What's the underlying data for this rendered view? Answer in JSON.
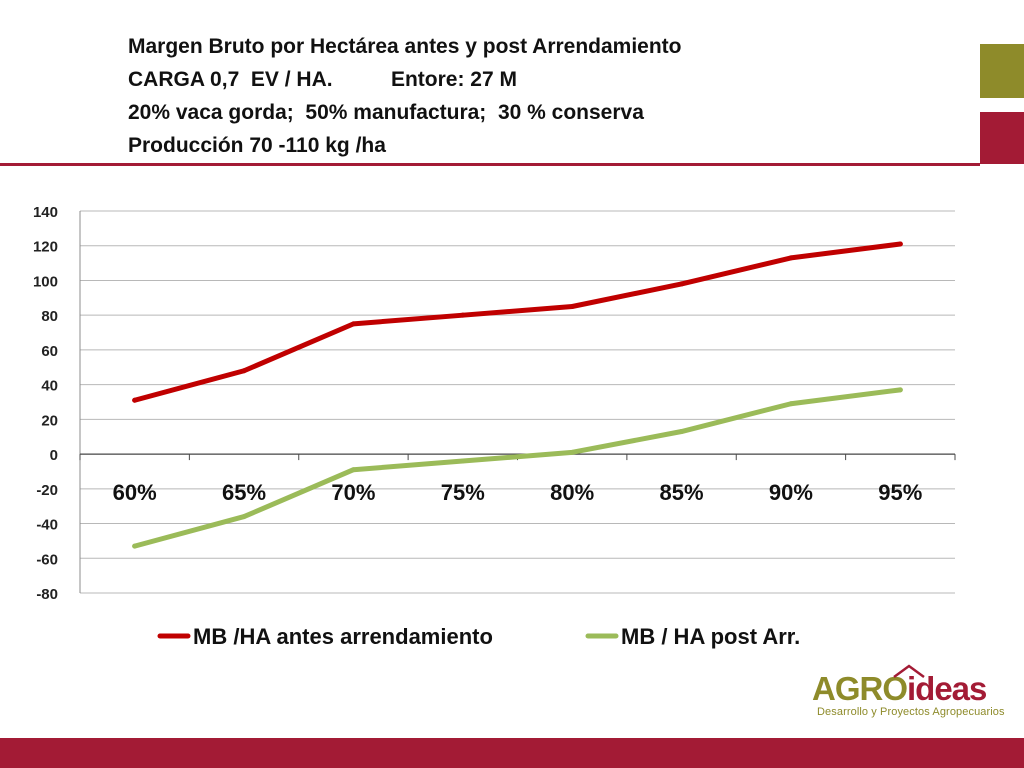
{
  "title_lines": [
    "Margen Bruto por Hectárea antes y post Arrendamiento",
    "CARGA 0,7  EV / HA.          Entore: 27 M",
    "20% vaca gorda;  50% manufactura;  30 % conserva",
    "Producción 70 -110 kg /ha"
  ],
  "colors": {
    "accent_red": "#a31b35",
    "accent_olive": "#8e8b2a",
    "series_red": "#c00000",
    "series_green": "#9bbb59"
  },
  "logo": {
    "main_agro": "AGRO",
    "main_ideas": "ideas",
    "subtitle": "Desarrollo y Proyectos Agropecuarios"
  },
  "chart_data": {
    "type": "line",
    "categories": [
      "60%",
      "65%",
      "70%",
      "75%",
      "80%",
      "85%",
      "90%",
      "95%"
    ],
    "series": [
      {
        "name": "MB /HA antes arrendamiento",
        "color": "#c00000",
        "values": [
          31,
          48,
          75,
          80,
          85,
          98,
          113,
          121
        ]
      },
      {
        "name": "MB / HA post Arr.",
        "color": "#9bbb59",
        "values": [
          -53,
          -36,
          -9,
          -4,
          1,
          13,
          29,
          37
        ]
      }
    ],
    "ylim": [
      -80,
      140
    ],
    "yticks": [
      140,
      120,
      100,
      80,
      60,
      40,
      20,
      0,
      -20,
      -40,
      -60,
      -80
    ],
    "grid": true,
    "legend_position": "bottom"
  }
}
